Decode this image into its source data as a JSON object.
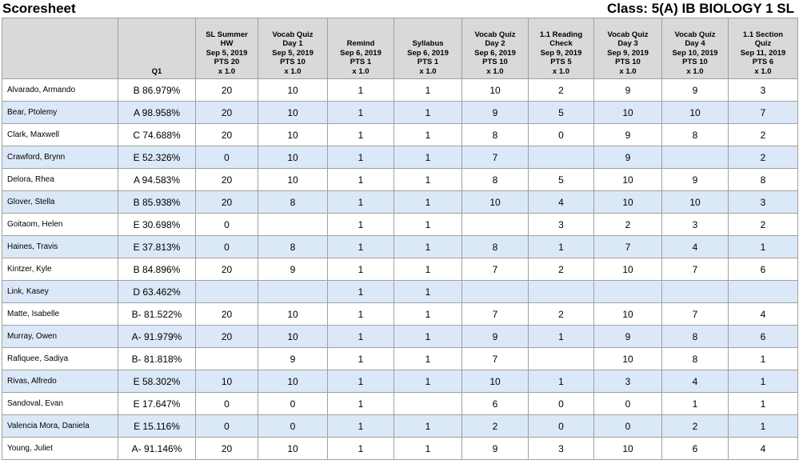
{
  "header": {
    "title": "Scoresheet",
    "class_label": "Class: 5(A) IB BIOLOGY 1 SL"
  },
  "table": {
    "grade_header": "Q1",
    "columns": [
      [
        "SL Summer",
        "HW",
        "Sep 5, 2019",
        "PTS 20",
        "x 1.0"
      ],
      [
        "Vocab Quiz",
        "Day 1",
        "Sep 5, 2019",
        "PTS 10",
        "x 1.0"
      ],
      [
        "Remind",
        "Sep 6, 2019",
        "PTS 1",
        "x 1.0"
      ],
      [
        "Syllabus",
        "Sep 6, 2019",
        "PTS 1",
        "x 1.0"
      ],
      [
        "Vocab Quiz",
        "Day 2",
        "Sep 6, 2019",
        "PTS 10",
        "x 1.0"
      ],
      [
        "1.1 Reading",
        "Check",
        "Sep 9, 2019",
        "PTS 5",
        "x 1.0"
      ],
      [
        "Vocab Quiz",
        "Day 3",
        "Sep 9, 2019",
        "PTS 10",
        "x 1.0"
      ],
      [
        "Vocab Quiz",
        "Day 4",
        "Sep 10, 2019",
        "PTS 10",
        "x 1.0"
      ],
      [
        "1.1 Section",
        "Quiz",
        "Sep 11, 2019",
        "PTS 6",
        "x 1.0"
      ]
    ],
    "rows": [
      {
        "name": "Alvarado, Armando",
        "grade": "B 86.979%",
        "scores": [
          20,
          10,
          1,
          1,
          10,
          2,
          9,
          9,
          3
        ]
      },
      {
        "name": "Bear, Ptolemy",
        "grade": "A 98.958%",
        "scores": [
          20,
          10,
          1,
          1,
          9,
          5,
          10,
          10,
          7
        ]
      },
      {
        "name": "Clark, Maxwell",
        "grade": "C 74.688%",
        "scores": [
          20,
          10,
          1,
          1,
          8,
          0,
          9,
          8,
          2
        ]
      },
      {
        "name": "Crawford, Brynn",
        "grade": "E 52.326%",
        "scores": [
          0,
          10,
          1,
          1,
          7,
          null,
          9,
          null,
          2
        ]
      },
      {
        "name": "Delora, Rhea",
        "grade": "A 94.583%",
        "scores": [
          20,
          10,
          1,
          1,
          8,
          5,
          10,
          9,
          8
        ]
      },
      {
        "name": "Glover, Stella",
        "grade": "B 85.938%",
        "scores": [
          20,
          8,
          1,
          1,
          10,
          4,
          10,
          10,
          3
        ]
      },
      {
        "name": "Goitaom, Helen",
        "grade": "E 30.698%",
        "scores": [
          0,
          null,
          1,
          1,
          null,
          3,
          2,
          3,
          2
        ]
      },
      {
        "name": "Haines, Travis",
        "grade": "E 37.813%",
        "scores": [
          0,
          8,
          1,
          1,
          8,
          1,
          7,
          4,
          1
        ]
      },
      {
        "name": "Kintzer, Kyle",
        "grade": "B 84.896%",
        "scores": [
          20,
          9,
          1,
          1,
          7,
          2,
          10,
          7,
          6
        ]
      },
      {
        "name": "Link, Kasey",
        "grade": "D 63.462%",
        "scores": [
          null,
          null,
          1,
          1,
          null,
          null,
          null,
          null,
          null
        ]
      },
      {
        "name": "Matte, Isabelle",
        "grade": "B- 81.522%",
        "scores": [
          20,
          10,
          1,
          1,
          7,
          2,
          10,
          7,
          4
        ]
      },
      {
        "name": "Murray, Owen",
        "grade": "A- 91.979%",
        "scores": [
          20,
          10,
          1,
          1,
          9,
          1,
          9,
          8,
          6
        ]
      },
      {
        "name": "Rafiquee, Sadiya",
        "grade": "B- 81.818%",
        "scores": [
          null,
          9,
          1,
          1,
          7,
          null,
          10,
          8,
          1
        ]
      },
      {
        "name": "Rivas, Alfredo",
        "grade": "E 58.302%",
        "scores": [
          10,
          10,
          1,
          1,
          10,
          1,
          3,
          4,
          1
        ]
      },
      {
        "name": "Sandoval, Evan",
        "grade": "E 17.647%",
        "scores": [
          0,
          0,
          1,
          null,
          6,
          0,
          0,
          1,
          1
        ]
      },
      {
        "name": "Valencia Mora, Daniela",
        "grade": "E 15.116%",
        "scores": [
          0,
          0,
          1,
          1,
          2,
          0,
          0,
          2,
          1
        ]
      },
      {
        "name": "Young, Juliet",
        "grade": "A- 91.146%",
        "scores": [
          20,
          10,
          1,
          1,
          9,
          3,
          10,
          6,
          4
        ]
      }
    ]
  }
}
